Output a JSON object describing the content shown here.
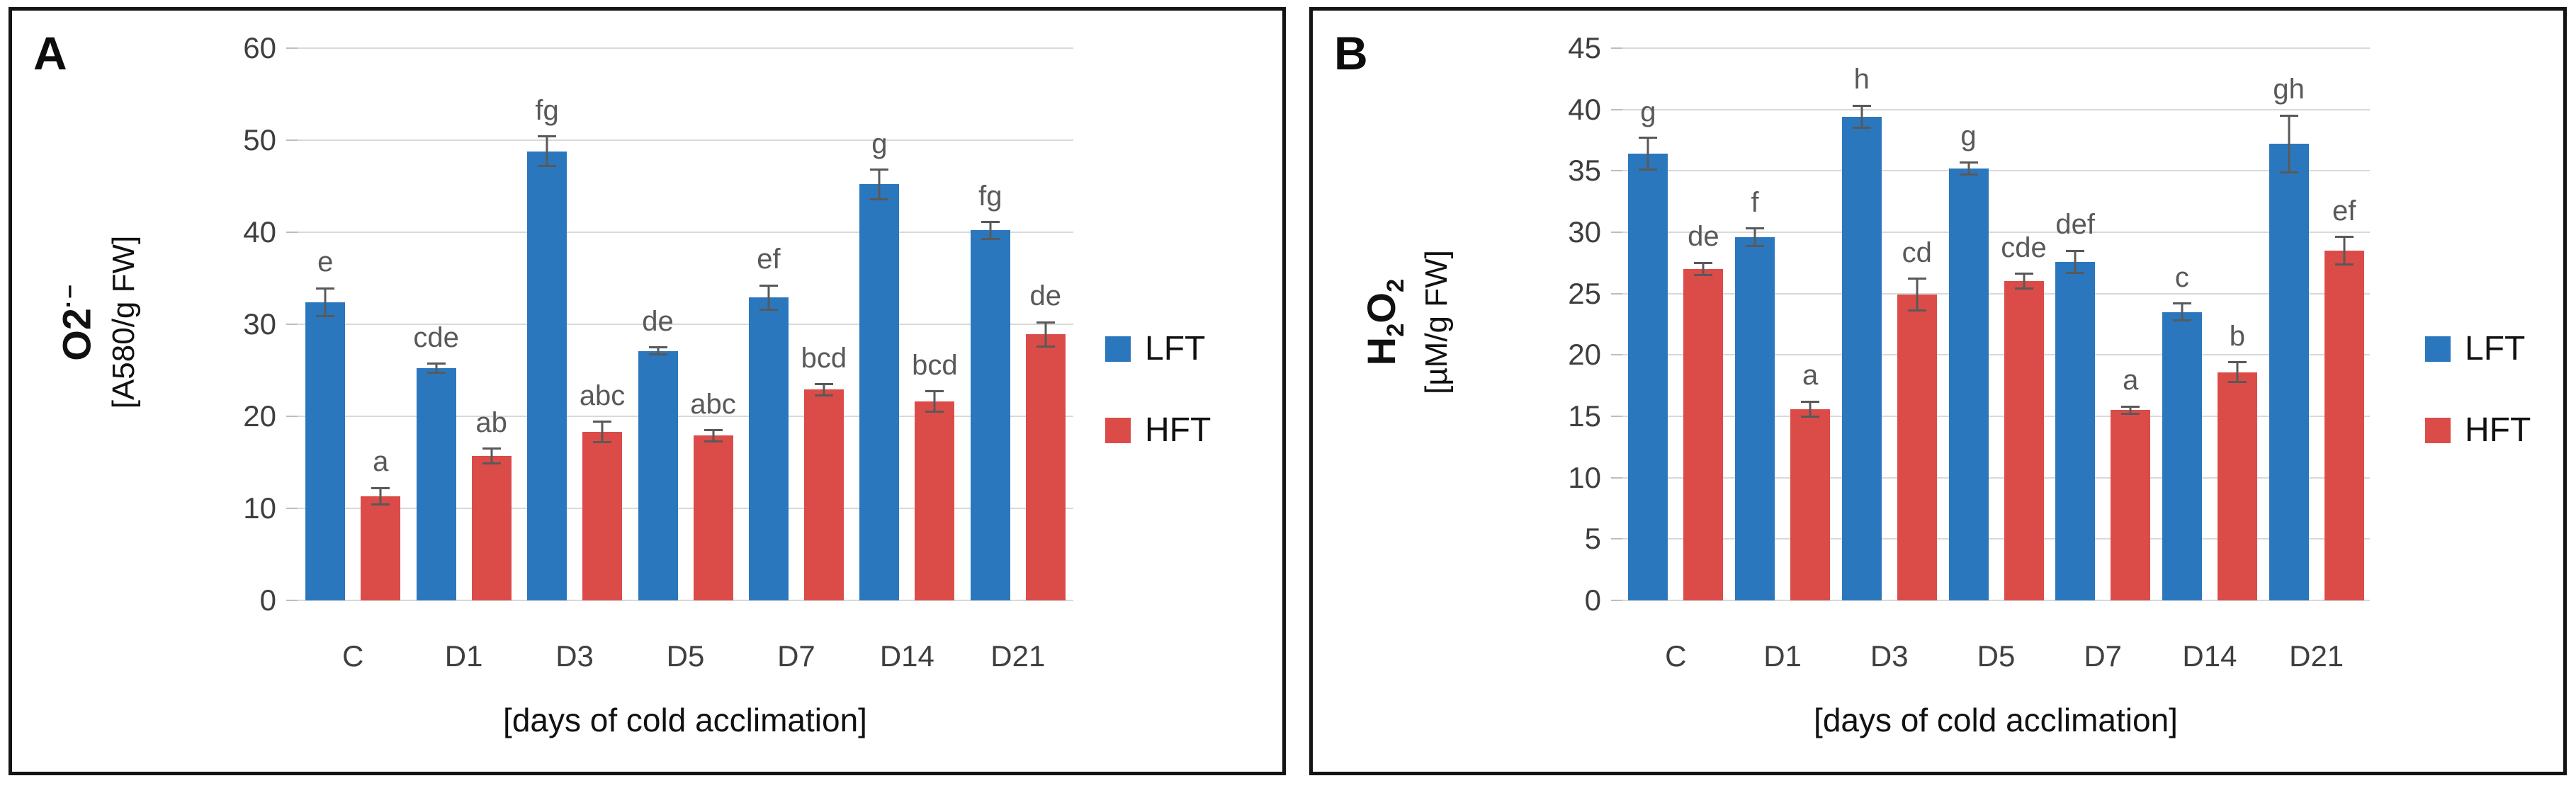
{
  "figure": {
    "x_title": "[days of cold acclimation]",
    "colors": {
      "lft_blue": "#2B77BE",
      "hft_red": "#DB4C49",
      "grid": "#D9D9D9",
      "error_bar": "#595959",
      "tick_text": "#3F3F3F",
      "border": "#141414"
    }
  },
  "panels": [
    {
      "label": "A",
      "y_title_parts": [
        {
          "text": "O2"
        },
        {
          "text": "·–",
          "sup": true
        }
      ],
      "y_unit": "[A580/g FW]",
      "x_title": "[days of cold acclimation]",
      "chart_data": {
        "type": "bar",
        "categories": [
          "C",
          "D1",
          "D3",
          "D5",
          "D7",
          "D14",
          "D21"
        ],
        "ylim": [
          0,
          60
        ],
        "ytick_step": 10,
        "grid": true,
        "legend_position": "right",
        "series": [
          {
            "name": "LFT",
            "color": "#2B77BE",
            "values": [
              32.4,
              25.2,
              48.8,
              27.1,
              32.9,
              45.2,
              40.2
            ],
            "errors": [
              1.5,
              0.5,
              1.6,
              0.4,
              1.3,
              1.6,
              0.9
            ],
            "letters": [
              "e",
              "cde",
              "fg",
              "de",
              "ef",
              "g",
              "fg"
            ]
          },
          {
            "name": "HFT",
            "color": "#DB4C49",
            "values": [
              11.3,
              15.7,
              18.3,
              17.9,
              22.9,
              21.6,
              28.9
            ],
            "errors": [
              0.9,
              0.8,
              1.1,
              0.6,
              0.6,
              1.1,
              1.3
            ],
            "letters": [
              "a",
              "ab",
              "abc",
              "abc",
              "bcd",
              "bcd",
              "de"
            ]
          }
        ]
      }
    },
    {
      "label": "B",
      "y_title_parts": [
        {
          "text": "H"
        },
        {
          "text": "2",
          "sub": true
        },
        {
          "text": "O"
        },
        {
          "text": "2",
          "sub": true
        }
      ],
      "y_unit": "[µM/g FW]",
      "x_title": "[days of cold acclimation]",
      "chart_data": {
        "type": "bar",
        "categories": [
          "C",
          "D1",
          "D3",
          "D5",
          "D7",
          "D14",
          "D21"
        ],
        "ylim": [
          0,
          45
        ],
        "ytick_step": 5,
        "grid": true,
        "legend_position": "right",
        "series": [
          {
            "name": "LFT",
            "color": "#2B77BE",
            "values": [
              36.4,
              29.6,
              39.4,
              35.2,
              27.6,
              23.5,
              37.2
            ],
            "errors": [
              1.3,
              0.7,
              0.9,
              0.5,
              0.9,
              0.7,
              2.3
            ],
            "letters": [
              "g",
              "f",
              "h",
              "g",
              "def",
              "c",
              "gh"
            ]
          },
          {
            "name": "HFT",
            "color": "#DB4C49",
            "values": [
              27.0,
              15.6,
              24.9,
              26.0,
              15.5,
              18.6,
              28.5
            ],
            "errors": [
              0.5,
              0.6,
              1.3,
              0.6,
              0.3,
              0.8,
              1.1
            ],
            "letters": [
              "de",
              "a",
              "cd",
              "cde",
              "a",
              "b",
              "ef"
            ]
          }
        ]
      }
    }
  ]
}
